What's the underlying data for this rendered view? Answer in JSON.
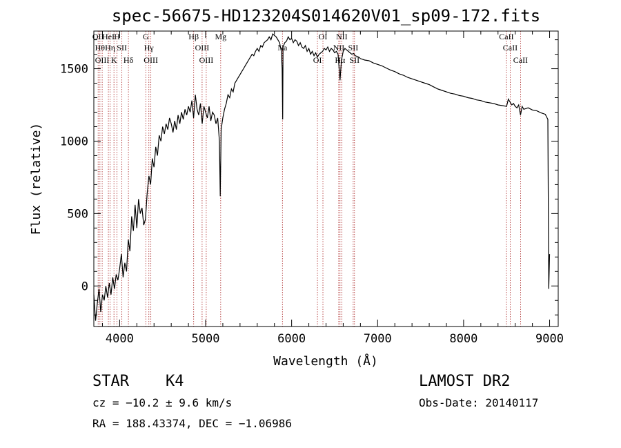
{
  "chart_data": {
    "type": "line",
    "title": "spec-56675-HD123204S014620V01_sp09-172.fits",
    "xlabel": "Wavelength (Å)",
    "ylabel": "Flux (relative)",
    "xlim": [
      3700,
      9100
    ],
    "ylim": [
      -280,
      1760
    ],
    "x_ticks": [
      4000,
      5000,
      6000,
      7000,
      8000,
      9000
    ],
    "y_ticks": [
      0,
      500,
      1000,
      1500
    ],
    "grid": false,
    "legend": "none",
    "line_color": "#000000",
    "marker_color": "#aa2222",
    "series": [
      {
        "x": [
          3700,
          3720,
          3740,
          3760,
          3780,
          3800,
          3820,
          3840,
          3860,
          3880,
          3900,
          3920,
          3940,
          3960,
          3980,
          4000,
          4020,
          4040,
          4060,
          4080,
          4100,
          4120,
          4140,
          4160,
          4180,
          4200,
          4220,
          4240,
          4260,
          4280,
          4300,
          4320,
          4340,
          4360,
          4380,
          4400,
          4420,
          4440,
          4460,
          4480,
          4500,
          4520,
          4540,
          4560,
          4580,
          4600,
          4620,
          4640,
          4660,
          4680,
          4700,
          4720,
          4740,
          4760,
          4780,
          4800,
          4820,
          4840,
          4860,
          4880,
          4900,
          4920,
          4940,
          4960,
          4980,
          5000,
          5020,
          5040,
          5060,
          5080,
          5100,
          5120,
          5140,
          5160,
          5170,
          5180,
          5200,
          5220,
          5240,
          5260,
          5280,
          5300,
          5320,
          5340,
          5360,
          5380,
          5400,
          5420,
          5440,
          5460,
          5480,
          5500,
          5520,
          5540,
          5560,
          5580,
          5600,
          5620,
          5640,
          5660,
          5680,
          5700,
          5720,
          5740,
          5760,
          5780,
          5800,
          5820,
          5840,
          5860,
          5880,
          5890,
          5896,
          5900,
          5920,
          5940,
          5960,
          5980,
          6000,
          6020,
          6040,
          6060,
          6080,
          6100,
          6120,
          6140,
          6160,
          6180,
          6200,
          6220,
          6240,
          6260,
          6280,
          6300,
          6320,
          6340,
          6360,
          6380,
          6400,
          6420,
          6440,
          6460,
          6480,
          6500,
          6520,
          6540,
          6563,
          6580,
          6600,
          6620,
          6640,
          6660,
          6680,
          6700,
          6720,
          6740,
          6760,
          6780,
          6800,
          6850,
          6900,
          6950,
          7000,
          7050,
          7100,
          7150,
          7200,
          7250,
          7300,
          7350,
          7400,
          7450,
          7500,
          7550,
          7600,
          7650,
          7700,
          7750,
          7800,
          7850,
          7900,
          7950,
          8000,
          8050,
          8100,
          8150,
          8200,
          8250,
          8300,
          8350,
          8400,
          8450,
          8500,
          8520,
          8540,
          8560,
          8580,
          8600,
          8620,
          8640,
          8662,
          8680,
          8700,
          8750,
          8800,
          8850,
          8900,
          8950,
          8980,
          8990,
          9000
        ],
        "y": [
          -60,
          -240,
          -120,
          -20,
          -180,
          -60,
          -100,
          0,
          -80,
          20,
          -60,
          60,
          -20,
          80,
          40,
          120,
          220,
          60,
          160,
          100,
          320,
          240,
          480,
          380,
          560,
          400,
          600,
          500,
          540,
          420,
          460,
          640,
          760,
          700,
          880,
          820,
          960,
          900,
          1040,
          1000,
          1100,
          1050,
          1120,
          1080,
          1160,
          1120,
          1060,
          1140,
          1080,
          1180,
          1120,
          1200,
          1150,
          1220,
          1180,
          1240,
          1200,
          1280,
          1160,
          1320,
          1220,
          1180,
          1260,
          1120,
          1240,
          1200,
          1160,
          1240,
          1140,
          1200,
          1180,
          1120,
          1160,
          1000,
          620,
          1080,
          1160,
          1220,
          1260,
          1320,
          1300,
          1360,
          1340,
          1400,
          1420,
          1440,
          1460,
          1480,
          1500,
          1520,
          1540,
          1560,
          1580,
          1600,
          1590,
          1620,
          1640,
          1620,
          1660,
          1650,
          1680,
          1690,
          1700,
          1720,
          1700,
          1740,
          1730,
          1720,
          1700,
          1680,
          1620,
          1500,
          1150,
          1650,
          1680,
          1690,
          1720,
          1700,
          1710,
          1680,
          1700,
          1690,
          1660,
          1680,
          1650,
          1640,
          1660,
          1620,
          1640,
          1600,
          1620,
          1590,
          1610,
          1580,
          1600,
          1610,
          1620,
          1640,
          1630,
          1650,
          1620,
          1640,
          1630,
          1610,
          1620,
          1600,
          1420,
          1560,
          1620,
          1640,
          1630,
          1620,
          1610,
          1600,
          1605,
          1590,
          1585,
          1580,
          1570,
          1560,
          1555,
          1540,
          1530,
          1520,
          1505,
          1490,
          1480,
          1465,
          1455,
          1440,
          1430,
          1420,
          1410,
          1400,
          1390,
          1375,
          1360,
          1350,
          1340,
          1330,
          1325,
          1315,
          1310,
          1300,
          1295,
          1285,
          1280,
          1270,
          1265,
          1260,
          1250,
          1245,
          1240,
          1290,
          1270,
          1250,
          1260,
          1240,
          1230,
          1250,
          1180,
          1240,
          1220,
          1230,
          1215,
          1210,
          1195,
          1185,
          1150,
          -20,
          220
        ]
      }
    ],
    "lines": [
      {
        "x": 3750,
        "label": "OII"
      },
      {
        "x": 3771,
        "label": "Hθ"
      },
      {
        "x": 3797,
        "label": "OIII"
      },
      {
        "x": 3869,
        "label": "HeI"
      },
      {
        "x": 3889,
        "label": "Hη"
      },
      {
        "x": 3934,
        "label": "K"
      },
      {
        "x": 3969,
        "label": "H"
      },
      {
        "x": 4026,
        "label": "SII"
      },
      {
        "x": 4102,
        "label": "Hδ"
      },
      {
        "x": 4304,
        "label": "G"
      },
      {
        "x": 4340,
        "label": "Hγ"
      },
      {
        "x": 4363,
        "label": "OIII"
      },
      {
        "x": 4861,
        "label": "Hβ"
      },
      {
        "x": 4959,
        "label": "OIII"
      },
      {
        "x": 5007,
        "label": "OIII"
      },
      {
        "x": 5175,
        "label": "Mg"
      },
      {
        "x": 5893,
        "label": "Na"
      },
      {
        "x": 6300,
        "label": "OI"
      },
      {
        "x": 6364,
        "label": "OI"
      },
      {
        "x": 6548,
        "label": "NII"
      },
      {
        "x": 6563,
        "label": "Hα"
      },
      {
        "x": 6583,
        "label": "NII"
      },
      {
        "x": 6716,
        "label": "SII"
      },
      {
        "x": 6731,
        "label": "SII"
      },
      {
        "x": 8498,
        "label": "CaII"
      },
      {
        "x": 8542,
        "label": "CaII"
      },
      {
        "x": 8662,
        "label": "CaII"
      }
    ]
  },
  "info": {
    "object_class": "STAR",
    "subclass": "K4",
    "survey": "LAMOST DR2",
    "cz": "cz = −10.2 ± 9.6 km/s",
    "obs_date": "Obs-Date: 20140117",
    "coords": "RA = 188.43374, DEC =  −1.06986"
  }
}
